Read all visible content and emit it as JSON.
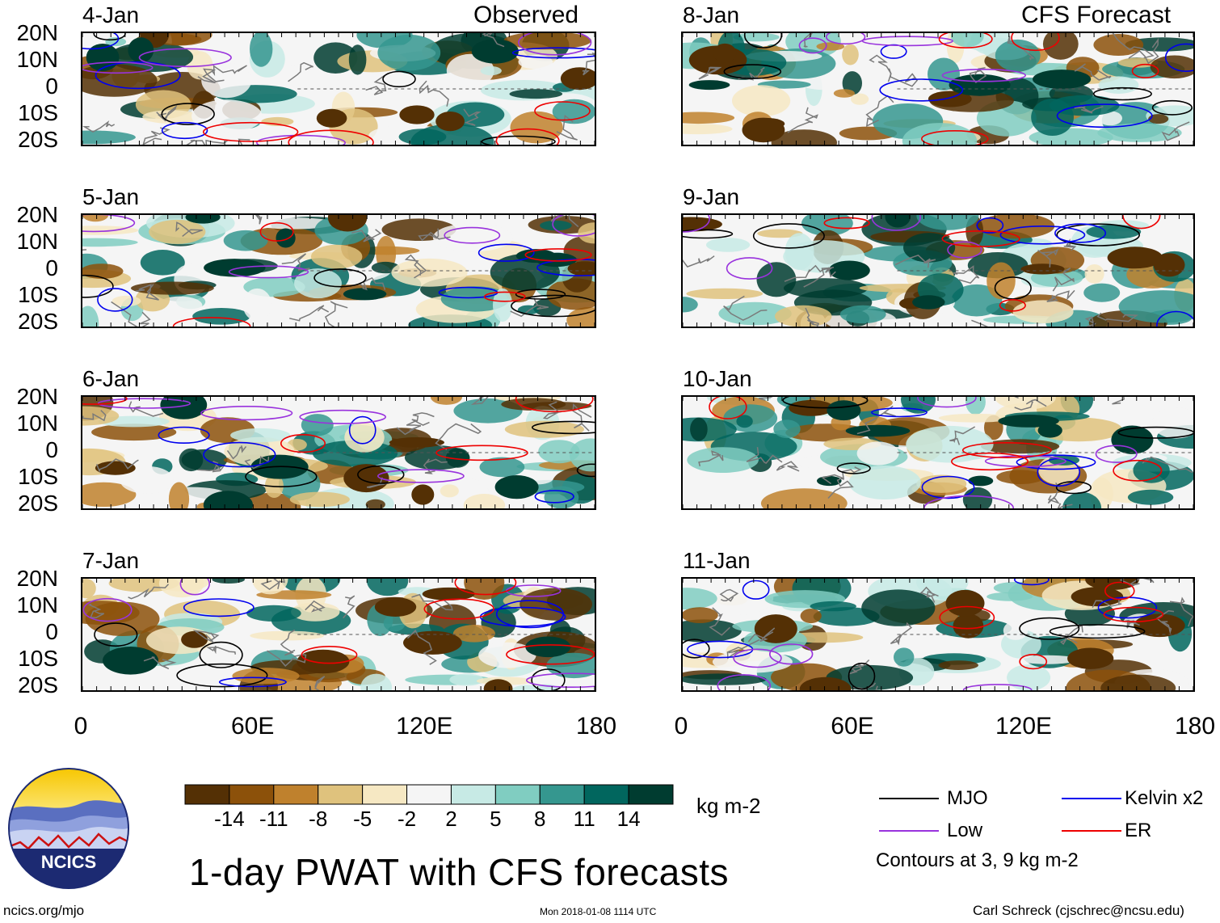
{
  "corner_labels": {
    "observed": "Observed",
    "forecast": "CFS Forecast"
  },
  "panels": [
    {
      "date": "4-Jan",
      "type": "observed"
    },
    {
      "date": "5-Jan",
      "type": "observed"
    },
    {
      "date": "6-Jan",
      "type": "observed"
    },
    {
      "date": "7-Jan",
      "type": "observed"
    },
    {
      "date": "8-Jan",
      "type": "forecast"
    },
    {
      "date": "9-Jan",
      "type": "forecast"
    },
    {
      "date": "10-Jan",
      "type": "forecast"
    },
    {
      "date": "11-Jan",
      "type": "forecast"
    }
  ],
  "lat_labels": [
    "20N",
    "10N",
    "0",
    "10S",
    "20S"
  ],
  "lon_labels": [
    "0",
    "60E",
    "120E",
    "180"
  ],
  "colorbar": {
    "labels": [
      "-14",
      "-11",
      "-8",
      "-5",
      "-2",
      "2",
      "5",
      "8",
      "11",
      "14"
    ],
    "colors": [
      "#543005",
      "#8c510a",
      "#bf812d",
      "#dfc27d",
      "#f6e8c3",
      "#f5f5f5",
      "#c7eae5",
      "#80cdc1",
      "#35978f",
      "#01665e",
      "#003c30"
    ],
    "units": "kg m-2"
  },
  "legend": {
    "items": [
      {
        "label": "MJO",
        "color": "#000000"
      },
      {
        "label": "Kelvin x2",
        "color": "#0000ee"
      },
      {
        "label": "Low",
        "color": "#9933dd"
      },
      {
        "label": "ER",
        "color": "#ee0000"
      }
    ],
    "note": "Contours at 3, 9 kg m-2"
  },
  "title": "1-day PWAT with CFS forecasts",
  "logo_text": "NCICS",
  "footer": {
    "url": "ncics.org/mjo",
    "timestamp": "Mon 2018-01-08 1114 UTC",
    "author": "Carl Schreck (cjschrec@ncsu.edu)"
  }
}
